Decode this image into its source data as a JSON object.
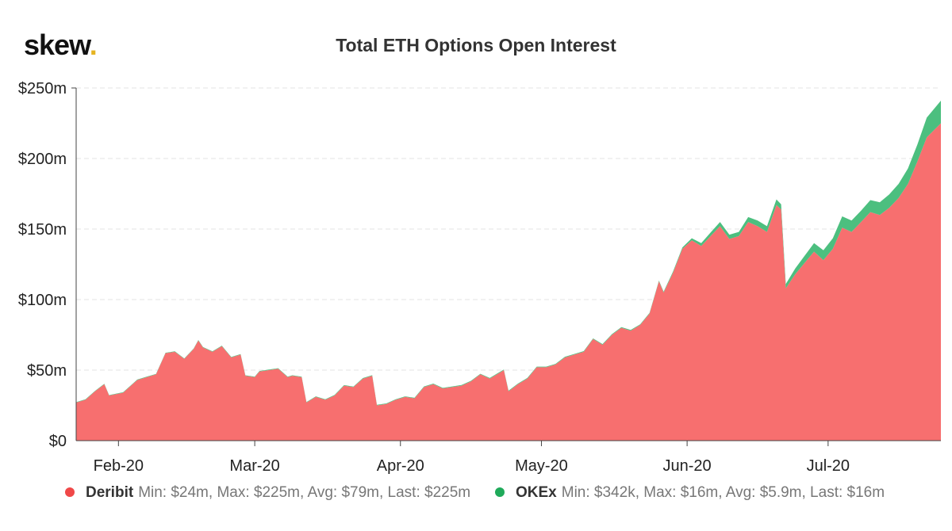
{
  "logo": {
    "text": "skew",
    "dot": "."
  },
  "chart_data": {
    "type": "area",
    "stacked": true,
    "title": "Total ETH Options Open Interest",
    "xlabel": "",
    "ylabel": "",
    "ylim": [
      0,
      250
    ],
    "y_ticks": [
      0,
      50,
      100,
      150,
      200,
      250
    ],
    "y_tick_labels": [
      "$0",
      "$50m",
      "$100m",
      "$150m",
      "$200m",
      "$250m"
    ],
    "x_ticks": [
      "2020-02-01",
      "2020-03-01",
      "2020-04-01",
      "2020-05-01",
      "2020-06-01",
      "2020-07-01"
    ],
    "x_tick_labels": [
      "Feb-20",
      "Mar-20",
      "Apr-20",
      "May-20",
      "Jun-20",
      "Jul-20"
    ],
    "x_range": [
      "2020-01-23",
      "2020-07-25"
    ],
    "grid": true,
    "legend_position": "bottom",
    "series": [
      {
        "name": "Deribit",
        "color": "#f76f6f",
        "stats": "Min: $24m, Max: $225m, Avg: $79m, Last: $225m",
        "points": [
          [
            "2020-01-23",
            27
          ],
          [
            "2020-01-25",
            29
          ],
          [
            "2020-01-27",
            35
          ],
          [
            "2020-01-29",
            40
          ],
          [
            "2020-01-30",
            32
          ],
          [
            "2020-02-02",
            34
          ],
          [
            "2020-02-04",
            40
          ],
          [
            "2020-02-05",
            43
          ],
          [
            "2020-02-07",
            45
          ],
          [
            "2020-02-09",
            47
          ],
          [
            "2020-02-11",
            62
          ],
          [
            "2020-02-13",
            63
          ],
          [
            "2020-02-15",
            58
          ],
          [
            "2020-02-17",
            65
          ],
          [
            "2020-02-18",
            71
          ],
          [
            "2020-02-19",
            66
          ],
          [
            "2020-02-21",
            63
          ],
          [
            "2020-02-23",
            67
          ],
          [
            "2020-02-25",
            59
          ],
          [
            "2020-02-27",
            61
          ],
          [
            "2020-02-28",
            46
          ],
          [
            "2020-03-01",
            45
          ],
          [
            "2020-03-02",
            49
          ],
          [
            "2020-03-04",
            50
          ],
          [
            "2020-03-06",
            51
          ],
          [
            "2020-03-08",
            45
          ],
          [
            "2020-03-09",
            46
          ],
          [
            "2020-03-11",
            45
          ],
          [
            "2020-03-12",
            27
          ],
          [
            "2020-03-14",
            31
          ],
          [
            "2020-03-16",
            29
          ],
          [
            "2020-03-18",
            32
          ],
          [
            "2020-03-20",
            39
          ],
          [
            "2020-03-22",
            38
          ],
          [
            "2020-03-24",
            44
          ],
          [
            "2020-03-26",
            46
          ],
          [
            "2020-03-27",
            25
          ],
          [
            "2020-03-29",
            26
          ],
          [
            "2020-03-31",
            29
          ],
          [
            "2020-04-02",
            31
          ],
          [
            "2020-04-04",
            30
          ],
          [
            "2020-04-06",
            38
          ],
          [
            "2020-04-08",
            40
          ],
          [
            "2020-04-10",
            37
          ],
          [
            "2020-04-12",
            38
          ],
          [
            "2020-04-14",
            39
          ],
          [
            "2020-04-16",
            42
          ],
          [
            "2020-04-18",
            47
          ],
          [
            "2020-04-20",
            44
          ],
          [
            "2020-04-22",
            48
          ],
          [
            "2020-04-23",
            50
          ],
          [
            "2020-04-24",
            35
          ],
          [
            "2020-04-26",
            40
          ],
          [
            "2020-04-28",
            44
          ],
          [
            "2020-04-30",
            52
          ],
          [
            "2020-05-02",
            52
          ],
          [
            "2020-05-04",
            54
          ],
          [
            "2020-05-06",
            59
          ],
          [
            "2020-05-08",
            61
          ],
          [
            "2020-05-10",
            63
          ],
          [
            "2020-05-12",
            72
          ],
          [
            "2020-05-14",
            68
          ],
          [
            "2020-05-16",
            75
          ],
          [
            "2020-05-18",
            80
          ],
          [
            "2020-05-20",
            78
          ],
          [
            "2020-05-22",
            82
          ],
          [
            "2020-05-24",
            90
          ],
          [
            "2020-05-26",
            113
          ],
          [
            "2020-05-27",
            105
          ],
          [
            "2020-05-29",
            119
          ],
          [
            "2020-05-31",
            136
          ],
          [
            "2020-06-02",
            142
          ],
          [
            "2020-06-04",
            138
          ],
          [
            "2020-06-06",
            145
          ],
          [
            "2020-06-08",
            152
          ],
          [
            "2020-06-10",
            143
          ],
          [
            "2020-06-12",
            145
          ],
          [
            "2020-06-14",
            155
          ],
          [
            "2020-06-16",
            152
          ],
          [
            "2020-06-18",
            148
          ],
          [
            "2020-06-20",
            167
          ],
          [
            "2020-06-21",
            164
          ],
          [
            "2020-06-22",
            108
          ],
          [
            "2020-06-24",
            118
          ],
          [
            "2020-06-26",
            126
          ],
          [
            "2020-06-28",
            134
          ],
          [
            "2020-06-30",
            128
          ],
          [
            "2020-07-02",
            136
          ],
          [
            "2020-07-04",
            151
          ],
          [
            "2020-07-06",
            148
          ],
          [
            "2020-07-08",
            155
          ],
          [
            "2020-07-10",
            162
          ],
          [
            "2020-07-12",
            160
          ],
          [
            "2020-07-14",
            165
          ],
          [
            "2020-07-16",
            172
          ],
          [
            "2020-07-18",
            182
          ],
          [
            "2020-07-20",
            198
          ],
          [
            "2020-07-22",
            215
          ],
          [
            "2020-07-25",
            225
          ]
        ]
      },
      {
        "name": "OKEx",
        "color": "#4cbf7f",
        "stats": "Min: $342k, Max: $16m, Avg: $5.9m, Last: $16m",
        "points": [
          [
            "2020-01-23",
            0.3
          ],
          [
            "2020-05-26",
            0.5
          ],
          [
            "2020-05-31",
            1
          ],
          [
            "2020-06-04",
            2
          ],
          [
            "2020-06-08",
            3
          ],
          [
            "2020-06-12",
            3
          ],
          [
            "2020-06-16",
            4
          ],
          [
            "2020-06-20",
            4
          ],
          [
            "2020-06-22",
            3
          ],
          [
            "2020-06-26",
            5
          ],
          [
            "2020-06-30",
            7
          ],
          [
            "2020-07-04",
            8
          ],
          [
            "2020-07-08",
            8
          ],
          [
            "2020-07-12",
            9
          ],
          [
            "2020-07-16",
            10
          ],
          [
            "2020-07-20",
            12
          ],
          [
            "2020-07-22",
            14
          ],
          [
            "2020-07-25",
            16
          ]
        ]
      }
    ]
  }
}
